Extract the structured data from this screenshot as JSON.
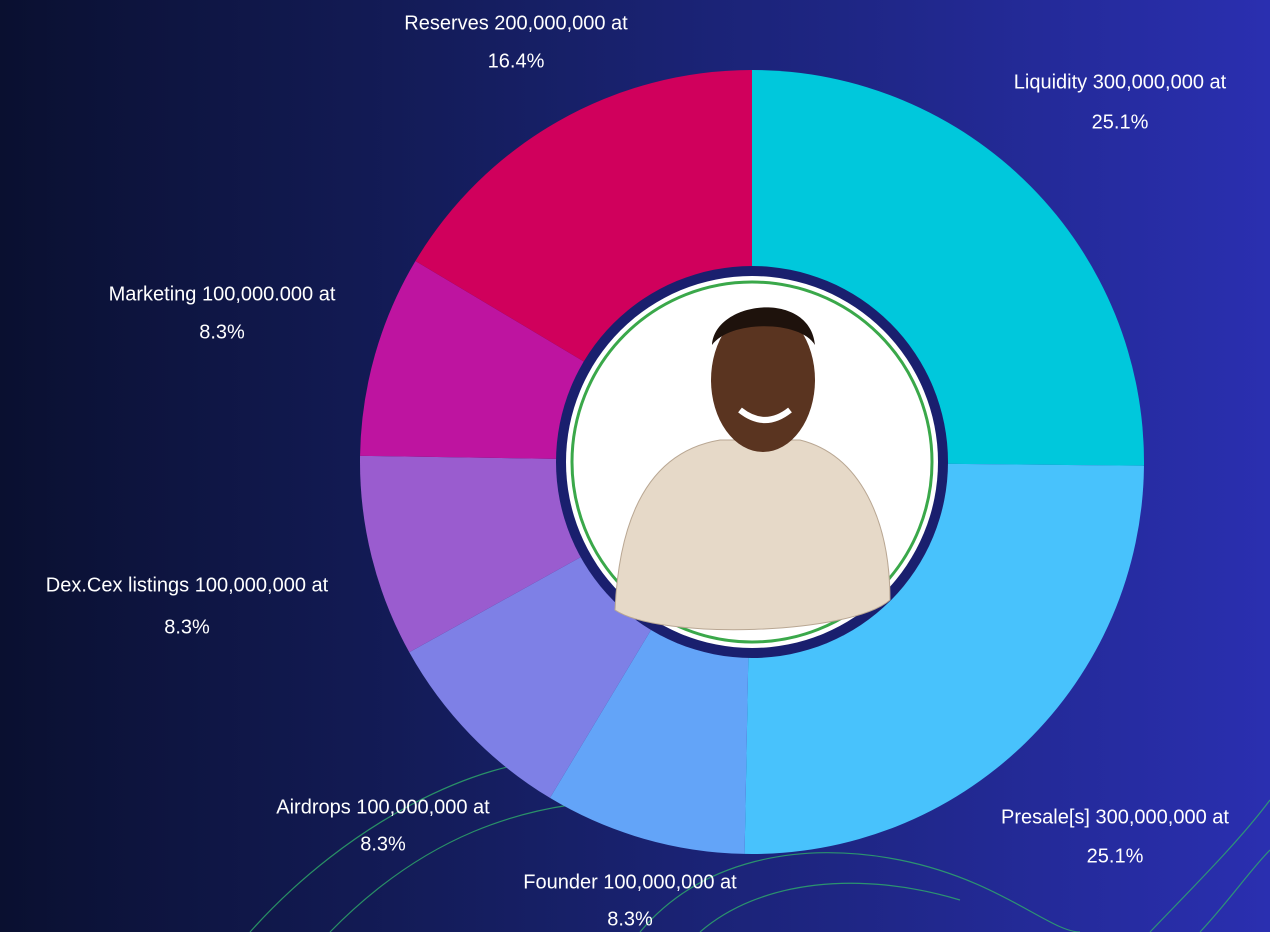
{
  "chart_data": {
    "type": "pie",
    "categories": [
      "Liquidity 300,000,000 at",
      "Presale[s] 300,000,000 at",
      "Founder 100,000,000 at",
      "Airdrops 100,000,000 at",
      "Dex.Cex listings 100,000,000 at",
      "Marketing 100,000.000 at",
      "Reserves 200,000,000 at"
    ],
    "values": [
      25.1,
      25.1,
      8.3,
      8.3,
      8.3,
      8.3,
      16.4
    ],
    "value_labels": [
      "25.1%",
      "25.1%",
      "8.3%",
      "8.3%",
      "8.3%",
      "8.3%",
      "16.4%"
    ],
    "colors": [
      "#00c8dc",
      "#48c2fc",
      "#63a4f8",
      "#7e80e6",
      "#9a5ccf",
      "#be14a0",
      "#d0005c"
    ]
  }
}
